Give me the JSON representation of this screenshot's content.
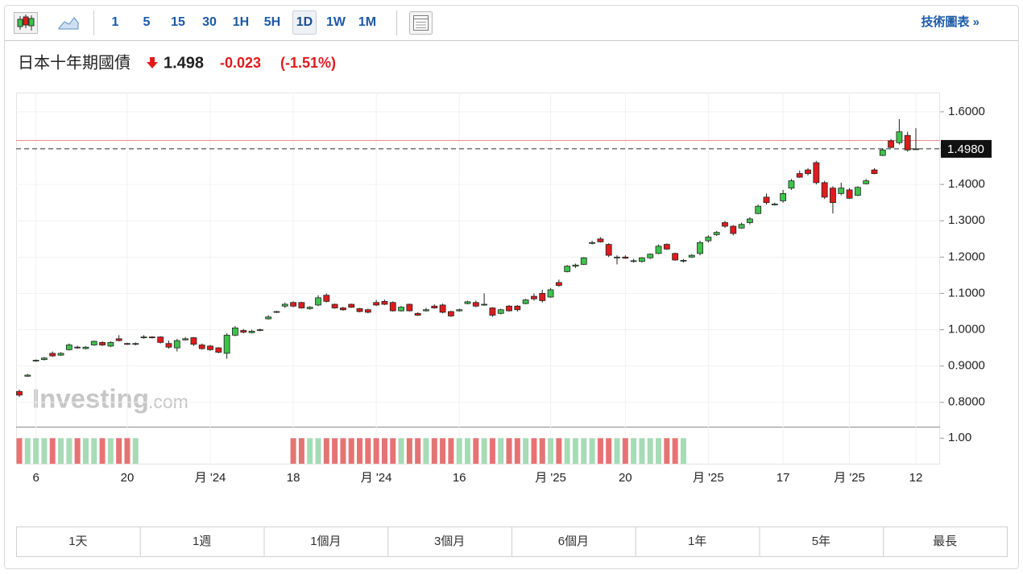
{
  "toolbar": {
    "intervals": [
      "1",
      "5",
      "15",
      "30",
      "1H",
      "5H",
      "1D",
      "1W",
      "1M"
    ],
    "active": "1D",
    "link": "技術圖表 »"
  },
  "header": {
    "title": "日本十年期國債",
    "price": "1.498",
    "change": "-0.023",
    "change_pct": "(-1.51%)"
  },
  "watermark": [
    "Investing",
    ".com"
  ],
  "chart_data": {
    "type": "candlestick",
    "categories": [
      null,
      null,
      "6",
      null,
      null,
      null,
      null,
      null,
      null,
      null,
      null,
      null,
      null,
      "20",
      null,
      null,
      null,
      null,
      null,
      null,
      null,
      null,
      null,
      "月 '24",
      null,
      null,
      null,
      null,
      null,
      null,
      null,
      null,
      null,
      "18",
      null,
      null,
      null,
      null,
      null,
      null,
      null,
      null,
      null,
      "月 '24",
      null,
      null,
      null,
      null,
      null,
      null,
      null,
      null,
      null,
      "16",
      null,
      null,
      null,
      null,
      null,
      null,
      null,
      null,
      null,
      null,
      "月 '25",
      null,
      null,
      null,
      null,
      null,
      null,
      null,
      null,
      "20",
      null,
      null,
      null,
      null,
      null,
      null,
      null,
      null,
      null,
      "月 '25",
      null,
      null,
      null,
      null,
      null,
      null,
      null,
      null,
      "17",
      null,
      null,
      null,
      null,
      null,
      null,
      null,
      "月 '25",
      null,
      null,
      null,
      null,
      null,
      null,
      null,
      "12"
    ],
    "ohlc": [
      [
        0.83,
        0.835,
        0.815,
        0.82
      ],
      [
        0.872,
        0.878,
        0.87,
        0.875
      ],
      [
        0.915,
        0.918,
        0.912,
        0.916
      ],
      [
        0.918,
        0.925,
        0.915,
        0.922
      ],
      [
        0.935,
        0.94,
        0.925,
        0.928
      ],
      [
        0.93,
        0.938,
        0.928,
        0.935
      ],
      [
        0.945,
        0.962,
        0.943,
        0.958
      ],
      [
        0.952,
        0.956,
        0.948,
        0.95
      ],
      [
        0.948,
        0.955,
        0.946,
        0.952
      ],
      [
        0.958,
        0.97,
        0.956,
        0.968
      ],
      [
        0.965,
        0.968,
        0.955,
        0.958
      ],
      [
        0.955,
        0.968,
        0.952,
        0.965
      ],
      [
        0.975,
        0.985,
        0.968,
        0.97
      ],
      [
        0.962,
        0.964,
        0.958,
        0.961
      ],
      [
        0.96,
        0.965,
        0.957,
        0.962
      ],
      [
        0.978,
        0.985,
        0.975,
        0.98
      ],
      [
        0.98,
        0.982,
        0.976,
        0.978
      ],
      [
        0.98,
        0.982,
        0.962,
        0.965
      ],
      [
        0.962,
        0.97,
        0.948,
        0.952
      ],
      [
        0.95,
        0.975,
        0.94,
        0.97
      ],
      [
        0.972,
        0.98,
        0.97,
        0.975
      ],
      [
        0.978,
        0.98,
        0.955,
        0.96
      ],
      [
        0.958,
        0.962,
        0.945,
        0.948
      ],
      [
        0.955,
        0.958,
        0.942,
        0.945
      ],
      [
        0.95,
        0.952,
        0.935,
        0.938
      ],
      [
        0.935,
        0.99,
        0.92,
        0.985
      ],
      [
        0.985,
        1.01,
        0.982,
        1.005
      ],
      [
        0.998,
        1.002,
        0.99,
        0.993
      ],
      [
        0.992,
        1.0,
        0.99,
        0.996
      ],
      [
        0.998,
        1.003,
        0.996,
        1.0
      ],
      [
        1.03,
        1.04,
        1.028,
        1.035
      ],
      [
        1.048,
        1.052,
        1.046,
        1.05
      ],
      [
        1.065,
        1.075,
        1.06,
        1.07
      ],
      [
        1.075,
        1.078,
        1.062,
        1.065
      ],
      [
        1.075,
        1.077,
        1.058,
        1.06
      ],
      [
        1.058,
        1.065,
        1.055,
        1.062
      ],
      [
        1.068,
        1.095,
        1.065,
        1.088
      ],
      [
        1.095,
        1.1,
        1.075,
        1.078
      ],
      [
        1.07,
        1.072,
        1.058,
        1.06
      ],
      [
        1.06,
        1.063,
        1.052,
        1.055
      ],
      [
        1.07,
        1.072,
        1.06,
        1.062
      ],
      [
        1.058,
        1.06,
        1.048,
        1.05
      ],
      [
        1.055,
        1.058,
        1.045,
        1.048
      ],
      [
        1.075,
        1.082,
        1.065,
        1.068
      ],
      [
        1.078,
        1.083,
        1.068,
        1.07
      ],
      [
        1.075,
        1.078,
        1.05,
        1.052
      ],
      [
        1.052,
        1.065,
        1.05,
        1.062
      ],
      [
        1.07,
        1.072,
        1.05,
        1.052
      ],
      [
        1.045,
        1.048,
        1.038,
        1.04
      ],
      [
        1.052,
        1.06,
        1.05,
        1.055
      ],
      [
        1.065,
        1.07,
        1.058,
        1.06
      ],
      [
        1.068,
        1.072,
        1.045,
        1.048
      ],
      [
        1.05,
        1.052,
        1.035,
        1.038
      ],
      [
        1.052,
        1.058,
        1.05,
        1.055
      ],
      [
        1.072,
        1.08,
        1.07,
        1.077
      ],
      [
        1.075,
        1.08,
        1.062,
        1.065
      ],
      [
        1.068,
        1.1,
        1.066,
        1.07
      ],
      [
        1.06,
        1.062,
        1.035,
        1.04
      ],
      [
        1.045,
        1.058,
        1.042,
        1.055
      ],
      [
        1.065,
        1.068,
        1.05,
        1.052
      ],
      [
        1.065,
        1.068,
        1.05,
        1.055
      ],
      [
        1.072,
        1.085,
        1.07,
        1.082
      ],
      [
        1.092,
        1.1,
        1.08,
        1.085
      ],
      [
        1.1,
        1.11,
        1.075,
        1.08
      ],
      [
        1.09,
        1.115,
        1.088,
        1.11
      ],
      [
        1.13,
        1.138,
        1.118,
        1.122
      ],
      [
        1.16,
        1.178,
        1.158,
        1.175
      ],
      [
        1.175,
        1.182,
        1.17,
        1.178
      ],
      [
        1.18,
        1.2,
        1.178,
        1.198
      ],
      [
        1.238,
        1.245,
        1.235,
        1.24
      ],
      [
        1.25,
        1.255,
        1.24,
        1.242
      ],
      [
        1.235,
        1.238,
        1.2,
        1.205
      ],
      [
        1.198,
        1.205,
        1.18,
        1.2
      ],
      [
        1.2,
        1.205,
        1.195,
        1.197
      ],
      [
        1.188,
        1.195,
        1.185,
        1.19
      ],
      [
        1.188,
        1.2,
        1.185,
        1.198
      ],
      [
        1.198,
        1.21,
        1.195,
        1.208
      ],
      [
        1.21,
        1.235,
        1.208,
        1.23
      ],
      [
        1.235,
        1.238,
        1.22,
        1.222
      ],
      [
        1.21,
        1.212,
        1.19,
        1.192
      ],
      [
        1.19,
        1.195,
        1.185,
        1.191
      ],
      [
        1.2,
        1.208,
        1.198,
        1.205
      ],
      [
        1.21,
        1.245,
        1.205,
        1.24
      ],
      [
        1.245,
        1.26,
        1.24,
        1.255
      ],
      [
        1.262,
        1.272,
        1.258,
        1.268
      ],
      [
        1.295,
        1.3,
        1.28,
        1.285
      ],
      [
        1.285,
        1.288,
        1.26,
        1.265
      ],
      [
        1.28,
        1.295,
        1.278,
        1.29
      ],
      [
        1.295,
        1.31,
        1.29,
        1.305
      ],
      [
        1.32,
        1.345,
        1.318,
        1.34
      ],
      [
        1.365,
        1.375,
        1.345,
        1.35
      ],
      [
        1.344,
        1.35,
        1.342,
        1.346
      ],
      [
        1.355,
        1.385,
        1.35,
        1.375
      ],
      [
        1.39,
        1.415,
        1.385,
        1.41
      ],
      [
        1.43,
        1.438,
        1.418,
        1.42
      ],
      [
        1.44,
        1.445,
        1.425,
        1.43
      ],
      [
        1.46,
        1.465,
        1.4,
        1.405
      ],
      [
        1.405,
        1.41,
        1.36,
        1.365
      ],
      [
        1.39,
        1.395,
        1.32,
        1.35
      ],
      [
        1.375,
        1.405,
        1.37,
        1.39
      ],
      [
        1.385,
        1.39,
        1.36,
        1.362
      ],
      [
        1.37,
        1.395,
        1.368,
        1.392
      ],
      [
        1.402,
        1.415,
        1.4,
        1.41
      ],
      [
        1.44,
        1.445,
        1.428,
        1.43
      ],
      [
        1.48,
        1.5,
        1.478,
        1.495
      ],
      [
        1.52,
        1.525,
        1.5,
        1.502
      ],
      [
        1.515,
        1.58,
        1.51,
        1.545
      ],
      [
        1.535,
        1.545,
        1.49,
        1.495
      ],
      [
        1.498,
        1.555,
        1.495,
        1.498
      ]
    ],
    "colors": {
      "up": "#3ec24c",
      "down": "#e01b1b",
      "volume_up": "#a6dbb5",
      "volume_down": "#e57373"
    },
    "ylim": [
      0.733,
      1.653
    ],
    "yticks": [
      {
        "value": 0.8,
        "label": "0.8000"
      },
      {
        "value": 0.9,
        "label": "0.9000"
      },
      {
        "value": 1.0,
        "label": "1.0000"
      },
      {
        "value": 1.1,
        "label": "1.1000"
      },
      {
        "value": 1.2,
        "label": "1.2000"
      },
      {
        "value": 1.3,
        "label": "1.3000"
      },
      {
        "value": 1.4,
        "label": "1.4000"
      },
      {
        "value": 1.5,
        "label": "1.5000"
      },
      {
        "value": 1.6,
        "label": "1.6000"
      }
    ],
    "last_price": {
      "value": 1.498,
      "label": "1.4980"
    },
    "prev_close": 1.521,
    "volume": [
      1,
      1,
      1,
      1,
      1,
      1,
      1,
      1,
      1,
      1,
      1,
      1,
      1,
      1,
      1,
      null,
      null,
      null,
      null,
      null,
      null,
      null,
      null,
      null,
      null,
      null,
      null,
      null,
      null,
      null,
      null,
      null,
      null,
      1,
      1,
      1,
      1,
      1,
      1,
      1,
      1,
      1,
      1,
      1,
      1,
      1,
      1,
      1,
      1,
      1,
      1,
      1,
      1,
      1,
      1,
      1,
      1,
      1,
      1,
      1,
      1,
      1,
      1,
      1,
      1,
      1,
      1,
      1,
      1,
      1,
      1,
      1,
      1,
      1,
      1,
      1,
      1,
      1,
      1,
      1,
      1,
      null,
      null,
      null,
      null,
      null,
      null,
      null,
      null,
      null,
      null,
      null,
      null,
      null,
      null,
      null,
      null,
      null,
      null,
      null,
      null,
      null,
      null,
      null,
      null,
      null,
      null,
      null,
      null
    ],
    "volume_ylim": [
      0,
      1.45
    ],
    "volume_yticks": [
      {
        "value": 1,
        "label": "1.00"
      }
    ],
    "grid": true
  },
  "range_buttons": [
    "1天",
    "1週",
    "1個月",
    "3個月",
    "6個月",
    "1年",
    "5年",
    "最長"
  ]
}
